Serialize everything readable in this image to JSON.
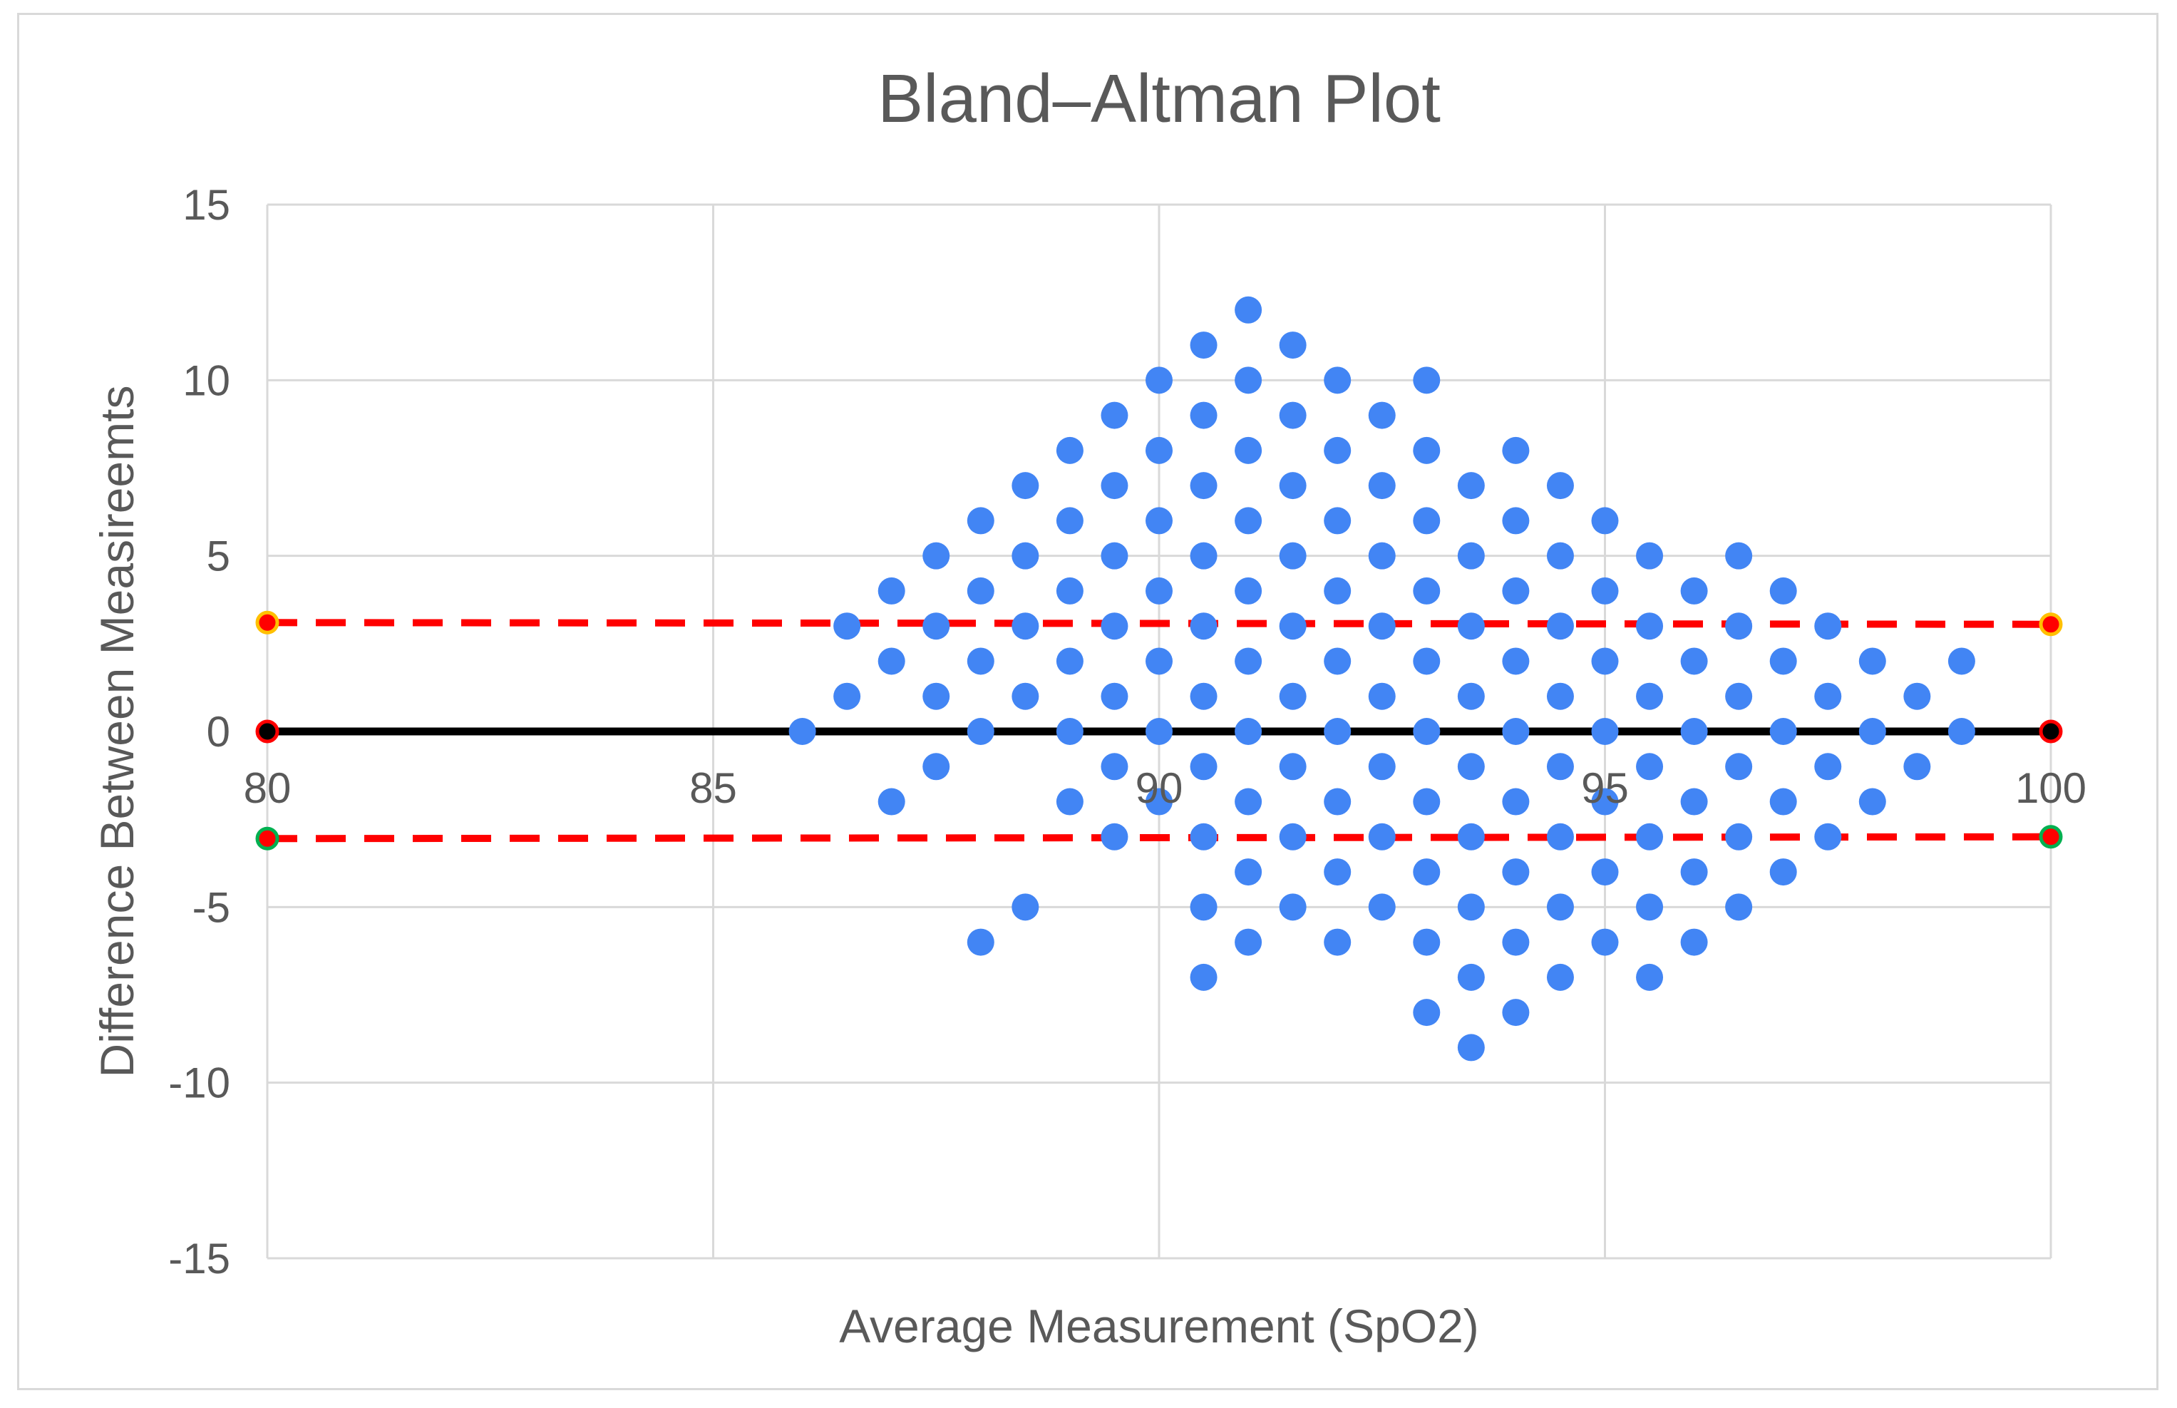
{
  "chart_data": {
    "type": "scatter",
    "title": "Bland–Altman Plot",
    "xlabel": "Average Measurement (SpO2)",
    "ylabel": "Difference Between Measireemts",
    "xlim": [
      80,
      100
    ],
    "ylim": [
      -15,
      15
    ],
    "x_ticks": [
      80,
      85,
      90,
      95,
      100
    ],
    "y_ticks": [
      -15,
      -10,
      -5,
      0,
      5,
      10,
      15
    ],
    "x_tick_labels": [
      "80",
      "85",
      "90",
      "95",
      "100"
    ],
    "y_tick_labels": [
      "-15",
      "-10",
      "-5",
      "0",
      "5",
      "10",
      "15"
    ],
    "grid": true,
    "legend": "none",
    "colors": {
      "points": "#4285f4",
      "mean_line": "#000000",
      "limit_lines": "#ff0000",
      "upper_marker_edge": "#ffc000",
      "lower_marker_edge": "#00b050",
      "grid": "#d9d9d9",
      "text": "#595959"
    },
    "reference_lines": [
      {
        "style": "solid",
        "color": "#000000",
        "y": [
          0,
          0
        ],
        "x": [
          80,
          100
        ],
        "marker_fill": "#000000",
        "marker_edge": "#ff0000"
      },
      {
        "style": "dashed",
        "color": "#ff0000",
        "y": [
          3.1,
          3.05
        ],
        "x": [
          80,
          100
        ],
        "marker_fill": "#ff0000",
        "marker_edge": "#ffc000"
      },
      {
        "style": "dashed",
        "color": "#ff0000",
        "y": [
          -3.05,
          -3.0
        ],
        "x": [
          80,
          100
        ],
        "marker_fill": "#ff0000",
        "marker_edge": "#00b050"
      }
    ],
    "points": [
      [
        86,
        0
      ],
      [
        86.5,
        1
      ],
      [
        86.5,
        3
      ],
      [
        87,
        -2
      ],
      [
        87,
        2
      ],
      [
        87,
        4
      ],
      [
        87.5,
        -1
      ],
      [
        87.5,
        1
      ],
      [
        87.5,
        3
      ],
      [
        87.5,
        5
      ],
      [
        88,
        -6
      ],
      [
        88,
        0
      ],
      [
        88,
        2
      ],
      [
        88,
        4
      ],
      [
        88,
        6
      ],
      [
        88.5,
        -5
      ],
      [
        88.5,
        1
      ],
      [
        88.5,
        3
      ],
      [
        88.5,
        5
      ],
      [
        88.5,
        7
      ],
      [
        89,
        -2
      ],
      [
        89,
        0
      ],
      [
        89,
        2
      ],
      [
        89,
        4
      ],
      [
        89,
        6
      ],
      [
        89,
        8
      ],
      [
        89.5,
        -3
      ],
      [
        89.5,
        -1
      ],
      [
        89.5,
        1
      ],
      [
        89.5,
        3
      ],
      [
        89.5,
        5
      ],
      [
        89.5,
        7
      ],
      [
        89.5,
        9
      ],
      [
        90,
        -2
      ],
      [
        90,
        0
      ],
      [
        90,
        2
      ],
      [
        90,
        4
      ],
      [
        90,
        6
      ],
      [
        90,
        8
      ],
      [
        90,
        10
      ],
      [
        90.5,
        -7
      ],
      [
        90.5,
        -5
      ],
      [
        90.5,
        -3
      ],
      [
        90.5,
        -1
      ],
      [
        90.5,
        1
      ],
      [
        90.5,
        3
      ],
      [
        90.5,
        5
      ],
      [
        90.5,
        7
      ],
      [
        90.5,
        9
      ],
      [
        90.5,
        11
      ],
      [
        91,
        -6
      ],
      [
        91,
        -4
      ],
      [
        91,
        -2
      ],
      [
        91,
        0
      ],
      [
        91,
        2
      ],
      [
        91,
        4
      ],
      [
        91,
        6
      ],
      [
        91,
        8
      ],
      [
        91,
        10
      ],
      [
        91,
        12
      ],
      [
        91.5,
        -5
      ],
      [
        91.5,
        -3
      ],
      [
        91.5,
        -1
      ],
      [
        91.5,
        1
      ],
      [
        91.5,
        3
      ],
      [
        91.5,
        5
      ],
      [
        91.5,
        7
      ],
      [
        91.5,
        9
      ],
      [
        91.5,
        11
      ],
      [
        92,
        -6
      ],
      [
        92,
        -4
      ],
      [
        92,
        -2
      ],
      [
        92,
        0
      ],
      [
        92,
        2
      ],
      [
        92,
        4
      ],
      [
        92,
        6
      ],
      [
        92,
        8
      ],
      [
        92,
        10
      ],
      [
        92.5,
        -5
      ],
      [
        92.5,
        -3
      ],
      [
        92.5,
        -1
      ],
      [
        92.5,
        1
      ],
      [
        92.5,
        3
      ],
      [
        92.5,
        5
      ],
      [
        92.5,
        7
      ],
      [
        92.5,
        9
      ],
      [
        93,
        -8
      ],
      [
        93,
        -6
      ],
      [
        93,
        -4
      ],
      [
        93,
        -2
      ],
      [
        93,
        0
      ],
      [
        93,
        2
      ],
      [
        93,
        4
      ],
      [
        93,
        6
      ],
      [
        93,
        8
      ],
      [
        93,
        10
      ],
      [
        93.5,
        -9
      ],
      [
        93.5,
        -7
      ],
      [
        93.5,
        -5
      ],
      [
        93.5,
        -3
      ],
      [
        93.5,
        -1
      ],
      [
        93.5,
        1
      ],
      [
        93.5,
        3
      ],
      [
        93.5,
        5
      ],
      [
        93.5,
        7
      ],
      [
        94,
        -8
      ],
      [
        94,
        -6
      ],
      [
        94,
        -4
      ],
      [
        94,
        -2
      ],
      [
        94,
        0
      ],
      [
        94,
        2
      ],
      [
        94,
        4
      ],
      [
        94,
        6
      ],
      [
        94,
        8
      ],
      [
        94.5,
        -7
      ],
      [
        94.5,
        -5
      ],
      [
        94.5,
        -3
      ],
      [
        94.5,
        -1
      ],
      [
        94.5,
        1
      ],
      [
        94.5,
        3
      ],
      [
        94.5,
        5
      ],
      [
        94.5,
        7
      ],
      [
        95,
        -6
      ],
      [
        95,
        -4
      ],
      [
        95,
        -2
      ],
      [
        95,
        0
      ],
      [
        95,
        2
      ],
      [
        95,
        4
      ],
      [
        95,
        6
      ],
      [
        95.5,
        -7
      ],
      [
        95.5,
        -5
      ],
      [
        95.5,
        -3
      ],
      [
        95.5,
        -1
      ],
      [
        95.5,
        1
      ],
      [
        95.5,
        3
      ],
      [
        95.5,
        5
      ],
      [
        96,
        -6
      ],
      [
        96,
        -4
      ],
      [
        96,
        -2
      ],
      [
        96,
        0
      ],
      [
        96,
        2
      ],
      [
        96,
        4
      ],
      [
        96.5,
        -5
      ],
      [
        96.5,
        -3
      ],
      [
        96.5,
        -1
      ],
      [
        96.5,
        1
      ],
      [
        96.5,
        3
      ],
      [
        96.5,
        5
      ],
      [
        97,
        -4
      ],
      [
        97,
        -2
      ],
      [
        97,
        0
      ],
      [
        97,
        2
      ],
      [
        97,
        4
      ],
      [
        97.5,
        -3
      ],
      [
        97.5,
        -1
      ],
      [
        97.5,
        1
      ],
      [
        97.5,
        3
      ],
      [
        98,
        -2
      ],
      [
        98,
        0
      ],
      [
        98,
        2
      ],
      [
        98.5,
        -1
      ],
      [
        98.5,
        1
      ],
      [
        99,
        0
      ],
      [
        99,
        2
      ]
    ]
  }
}
